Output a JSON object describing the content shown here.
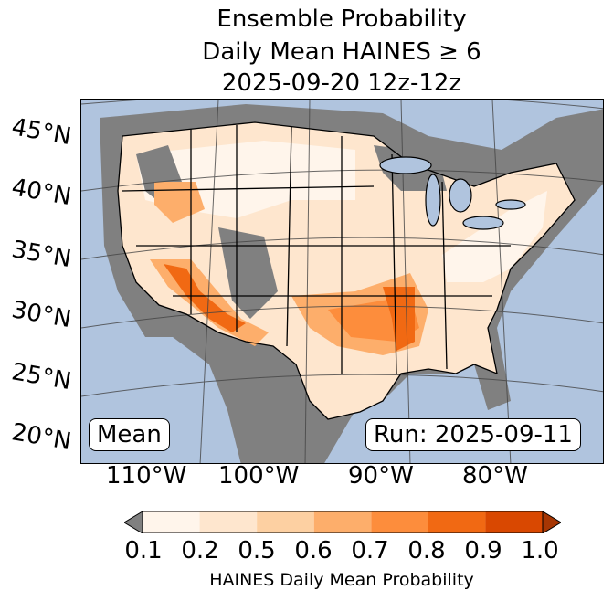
{
  "title": {
    "line1": "Ensemble Probability",
    "line2": "Daily Mean HAINES ≥ 6",
    "line3": "2025-09-20 12z-12z"
  },
  "map": {
    "latitude_labels": [
      "45°N",
      "40°N",
      "35°N",
      "30°N",
      "25°N",
      "20°N"
    ],
    "longitude_labels": [
      "110°W",
      "100°W",
      "90°W",
      "80°W"
    ],
    "left_box": "Mean",
    "right_box": "Run: 2025-09-11",
    "colors": {
      "ocean": "#b0c4de",
      "missing_gray": "#808080",
      "lakes": "#b0c4de"
    }
  },
  "colorbar": {
    "ticks": [
      "0.1",
      "0.2",
      "0.5",
      "0.6",
      "0.7",
      "0.8",
      "0.9",
      "1.0"
    ],
    "label": "HAINES Daily Mean Probability",
    "colors": [
      "#fff5eb",
      "#fee6ce",
      "#fdd0a2",
      "#fdae6b",
      "#fd8d3c",
      "#f16913",
      "#d94801",
      "#a63603"
    ],
    "under_color": "#808080"
  }
}
